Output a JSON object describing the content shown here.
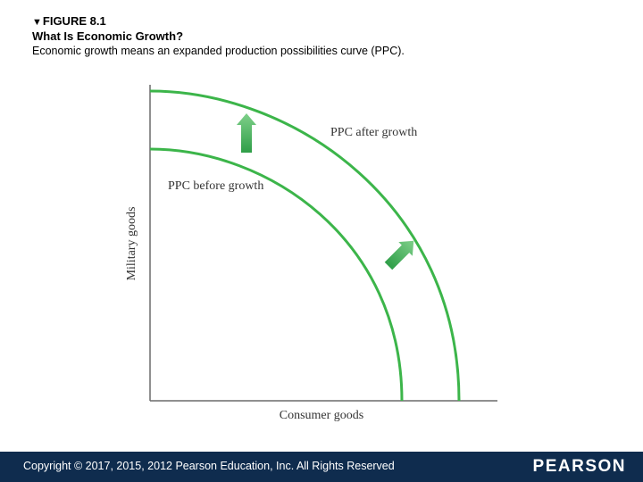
{
  "figure": {
    "marker": "▼",
    "label": "FIGURE 8.1",
    "title": "What Is Economic Growth?",
    "caption": "Economic growth means an expanded production possibilities curve (PPC)."
  },
  "diagram": {
    "y_axis_label": "Military goods",
    "x_axis_label": "Consumer goods",
    "curve_after_label": "PPC after growth",
    "curve_before_label": "PPC before growth",
    "curve_color": "#3cb54a",
    "axis_color": "#6b6b6b",
    "arrow_color_light": "#7fd08a",
    "arrow_color_dark": "#2f9e48"
  },
  "footer": {
    "copyright": "Copyright © 2017, 2015, 2012 Pearson Education, Inc. All Rights Reserved",
    "brand": "PEARSON",
    "background": "#0f2c4e"
  }
}
